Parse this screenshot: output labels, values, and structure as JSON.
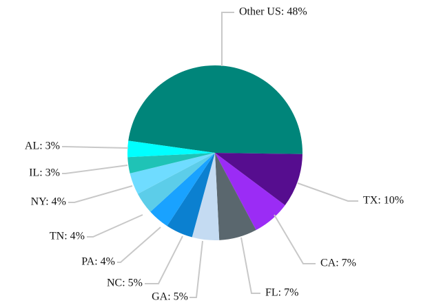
{
  "chart_data": {
    "type": "pie",
    "categories": [
      "Other US: 48%",
      "TX: 10%",
      "CA: 7%",
      "FL: 7%",
      "GA: 5%",
      "NC: 5%",
      "PA: 4%",
      "TN: 4%",
      "NY: 4%",
      "IL: 3%",
      "AL: 3%"
    ],
    "values": [
      48,
      10,
      7,
      7,
      5,
      5,
      4,
      4,
      4,
      3,
      3
    ],
    "colors": [
      "#00857a",
      "#560d8f",
      "#9b2cf5",
      "#5a676e",
      "#c4dbf2",
      "#0b80d0",
      "#19a2ff",
      "#5ccde9",
      "#6fdcff",
      "#1fc3b6",
      "#00ffff"
    ]
  }
}
